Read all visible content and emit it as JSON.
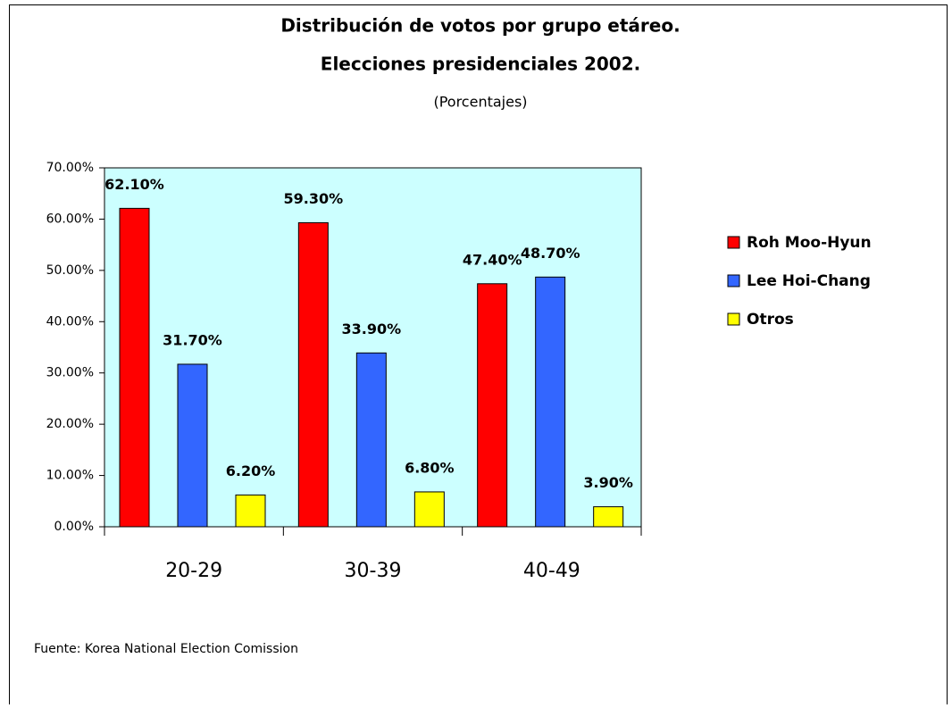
{
  "chart_data": {
    "type": "bar",
    "title": "Distribución de votos por grupo etáreo.",
    "subtitle": "Elecciones presidenciales 2002.",
    "unit_label": "(Porcentajes)",
    "note": "Fuente: Korea National Election Comission",
    "categories": [
      "20-29",
      "30-39",
      "40-49"
    ],
    "series": [
      {
        "name": "Roh Moo-Hyun",
        "color": "#ff0000",
        "values": [
          62.1,
          59.3,
          47.4
        ],
        "value_labels": [
          "62.10%",
          "59.30%",
          "47.40%"
        ]
      },
      {
        "name": "Lee Hoi-Chang",
        "color": "#3366ff",
        "values": [
          31.7,
          33.9,
          48.7
        ],
        "value_labels": [
          "31.70%",
          "33.90%",
          "48.70%"
        ]
      },
      {
        "name": "Otros",
        "color": "#ffff00",
        "values": [
          6.2,
          6.8,
          3.9
        ],
        "value_labels": [
          "6.20%",
          "6.80%",
          "3.90%"
        ]
      }
    ],
    "ylim": [
      0,
      70
    ],
    "yticks": [
      {
        "value": 0,
        "label": "0.00%"
      },
      {
        "value": 10,
        "label": "10.00%"
      },
      {
        "value": 20,
        "label": "20.00%"
      },
      {
        "value": 30,
        "label": "30.00%"
      },
      {
        "value": 40,
        "label": "40.00%"
      },
      {
        "value": 50,
        "label": "50.00%"
      },
      {
        "value": 60,
        "label": "60.00%"
      },
      {
        "value": 70,
        "label": "70.00%"
      }
    ],
    "legend": "right",
    "plot_background": "#ccffff"
  }
}
